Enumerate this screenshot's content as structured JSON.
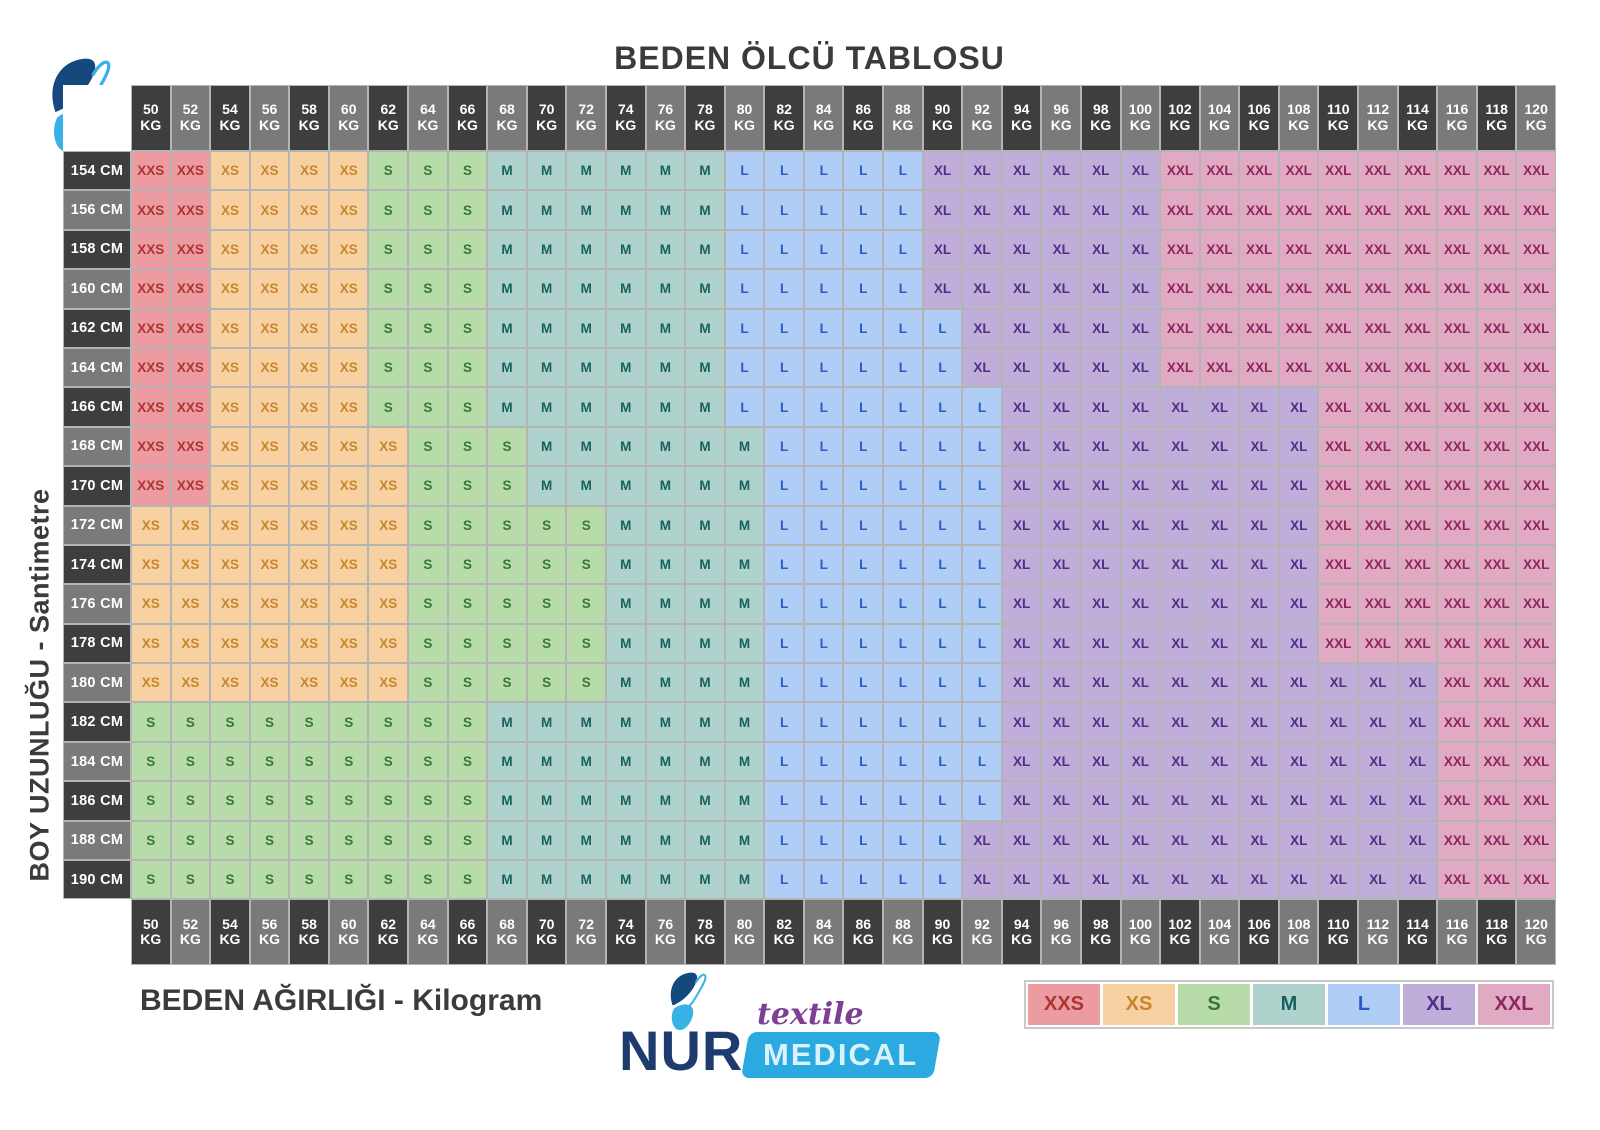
{
  "title": "BEDEN ÖLCÜ TABLOSU",
  "y_axis_label": "BOY UZUNLUĞU - Santimetre",
  "x_axis_label": "BEDEN AĞIRLIĞI - Kilogram",
  "weight_unit": "KG",
  "height_unit": "CM",
  "legend": [
    "XXS",
    "XS",
    "S",
    "M",
    "L",
    "XL",
    "XXL"
  ],
  "brand": {
    "name": "NUR",
    "tagline": "textile",
    "division": "MEDICAL"
  },
  "colors": {
    "XXS": {
      "bg": "#EC9BA1",
      "fg": "#AE352F"
    },
    "XS": {
      "bg": "#F8D1A2",
      "fg": "#C8862C"
    },
    "S": {
      "bg": "#B7DCAA",
      "fg": "#37792E"
    },
    "M": {
      "bg": "#AFD3CC",
      "fg": "#17615E"
    },
    "L": {
      "bg": "#B0CEF5",
      "fg": "#2A5BC6"
    },
    "XL": {
      "bg": "#BFAED9",
      "fg": "#532D85"
    },
    "XXL": {
      "bg": "#E1AAC3",
      "fg": "#8F2560"
    },
    "header_dark": "#3F3E3E",
    "header_light": "#7B7A7A",
    "header_text": "#FFFFFF",
    "grid_line": "#B4B4B4",
    "title_text": "#3B3B3B",
    "brand_navy": "#1D3C6D",
    "brand_blue": "#2BA9E1",
    "brand_light_blue": "#38B1E7",
    "brand_dark_wing": "#15497E",
    "brand_purple": "#7D3E95"
  },
  "chart_data": {
    "type": "table",
    "title": "BEDEN ÖLCÜ TABLOSU",
    "xlabel": "BEDEN AĞIRLIĞI - Kilogram",
    "ylabel": "BOY UZUNLUĞU - Santimetre",
    "weights_kg": [
      50,
      52,
      54,
      56,
      58,
      60,
      62,
      64,
      66,
      68,
      70,
      72,
      74,
      76,
      78,
      80,
      82,
      84,
      86,
      88,
      90,
      92,
      94,
      96,
      98,
      100,
      102,
      104,
      106,
      108,
      110,
      112,
      114,
      116,
      118,
      120
    ],
    "heights_cm": [
      154,
      156,
      158,
      160,
      162,
      164,
      166,
      168,
      170,
      172,
      174,
      176,
      178,
      180,
      182,
      184,
      186,
      188,
      190
    ],
    "sizes_scale": [
      "XXS",
      "XS",
      "S",
      "M",
      "L",
      "XL",
      "XXL"
    ],
    "rows": [
      {
        "height_cm": 154,
        "sizes": "XXS XXS XS XS XS XS S S S M M M M M M L L L L L XL XL XL XL XL XL XXL XXL XXL XXL XXL XXL XXL XXL XXL XXL"
      },
      {
        "height_cm": 156,
        "sizes": "XXS XXS XS XS XS XS S S S M M M M M M L L L L L XL XL XL XL XL XL XXL XXL XXL XXL XXL XXL XXL XXL XXL XXL"
      },
      {
        "height_cm": 158,
        "sizes": "XXS XXS XS XS XS XS S S S M M M M M M L L L L L XL XL XL XL XL XL XXL XXL XXL XXL XXL XXL XXL XXL XXL XXL"
      },
      {
        "height_cm": 160,
        "sizes": "XXS XXS XS XS XS XS S S S M M M M M M L L L L L XL XL XL XL XL XL XXL XXL XXL XXL XXL XXL XXL XXL XXL XXL"
      },
      {
        "height_cm": 162,
        "sizes": "XXS XXS XS XS XS XS S S S M M M M M M L L L L L L XL XL XL XL XL XXL XXL XXL XXL XXL XXL XXL XXL XXL XXL"
      },
      {
        "height_cm": 164,
        "sizes": "XXS XXS XS XS XS XS S S S M M M M M M L L L L L L XL XL XL XL XL XXL XXL XXL XXL XXL XXL XXL XXL XXL XXL"
      },
      {
        "height_cm": 166,
        "sizes": "XXS XXS XS XS XS XS S S S M M M M M M L L L L L L L XL XL XL XL XL XL XL XL XXL XXL XXL XXL XXL XXL"
      },
      {
        "height_cm": 168,
        "sizes": "XXS XXS XS XS XS XS XS S S S M M M M M M L L L L L L XL XL XL XL XL XL XL XL XXL XXL XXL XXL XXL XXL"
      },
      {
        "height_cm": 170,
        "sizes": "XXS XXS XS XS XS XS XS S S S M M M M M M L L L L L L XL XL XL XL XL XL XL XL XXL XXL XXL XXL XXL XXL"
      },
      {
        "height_cm": 172,
        "sizes": "XS XS XS XS XS XS XS S S S S S M M M M L L L L L L XL XL XL XL XL XL XL XL XXL XXL XXL XXL XXL XXL"
      },
      {
        "height_cm": 174,
        "sizes": "XS XS XS XS XS XS XS S S S S S M M M M L L L L L L XL XL XL XL XL XL XL XL XXL XXL XXL XXL XXL XXL"
      },
      {
        "height_cm": 176,
        "sizes": "XS XS XS XS XS XS XS S S S S S M M M M L L L L L L XL XL XL XL XL XL XL XL XXL XXL XXL XXL XXL XXL"
      },
      {
        "height_cm": 178,
        "sizes": "XS XS XS XS XS XS XS S S S S S M M M M L L L L L L XL XL XL XL XL XL XL XL XXL XXL XXL XXL XXL XXL"
      },
      {
        "height_cm": 180,
        "sizes": "XS XS XS XS XS XS XS S S S S S M M M M L L L L L L XL XL XL XL XL XL XL XL XL XL XL XXL XXL XXL"
      },
      {
        "height_cm": 182,
        "sizes": "S S S S S S S S S M M M M M M M L L L L L L XL XL XL XL XL XL XL XL XL XL XL XXL XXL XXL"
      },
      {
        "height_cm": 184,
        "sizes": "S S S S S S S S S M M M M M M M L L L L L L XL XL XL XL XL XL XL XL XL XL XL XXL XXL XXL"
      },
      {
        "height_cm": 186,
        "sizes": "S S S S S S S S S M M M M M M M L L L L L L XL XL XL XL XL XL XL XL XL XL XL XXL XXL XXL"
      },
      {
        "height_cm": 188,
        "sizes": "S S S S S S S S S M M M M M M M L L L L L XL XL XL XL XL XL XL XL XL XL XL XL XXL XXL XXL"
      },
      {
        "height_cm": 190,
        "sizes": "S S S S S S S S S M M M M M M M L L L L L XL XL XL XL XL XL XL XL XL XL XL XL XXL XXL XXL"
      }
    ]
  }
}
